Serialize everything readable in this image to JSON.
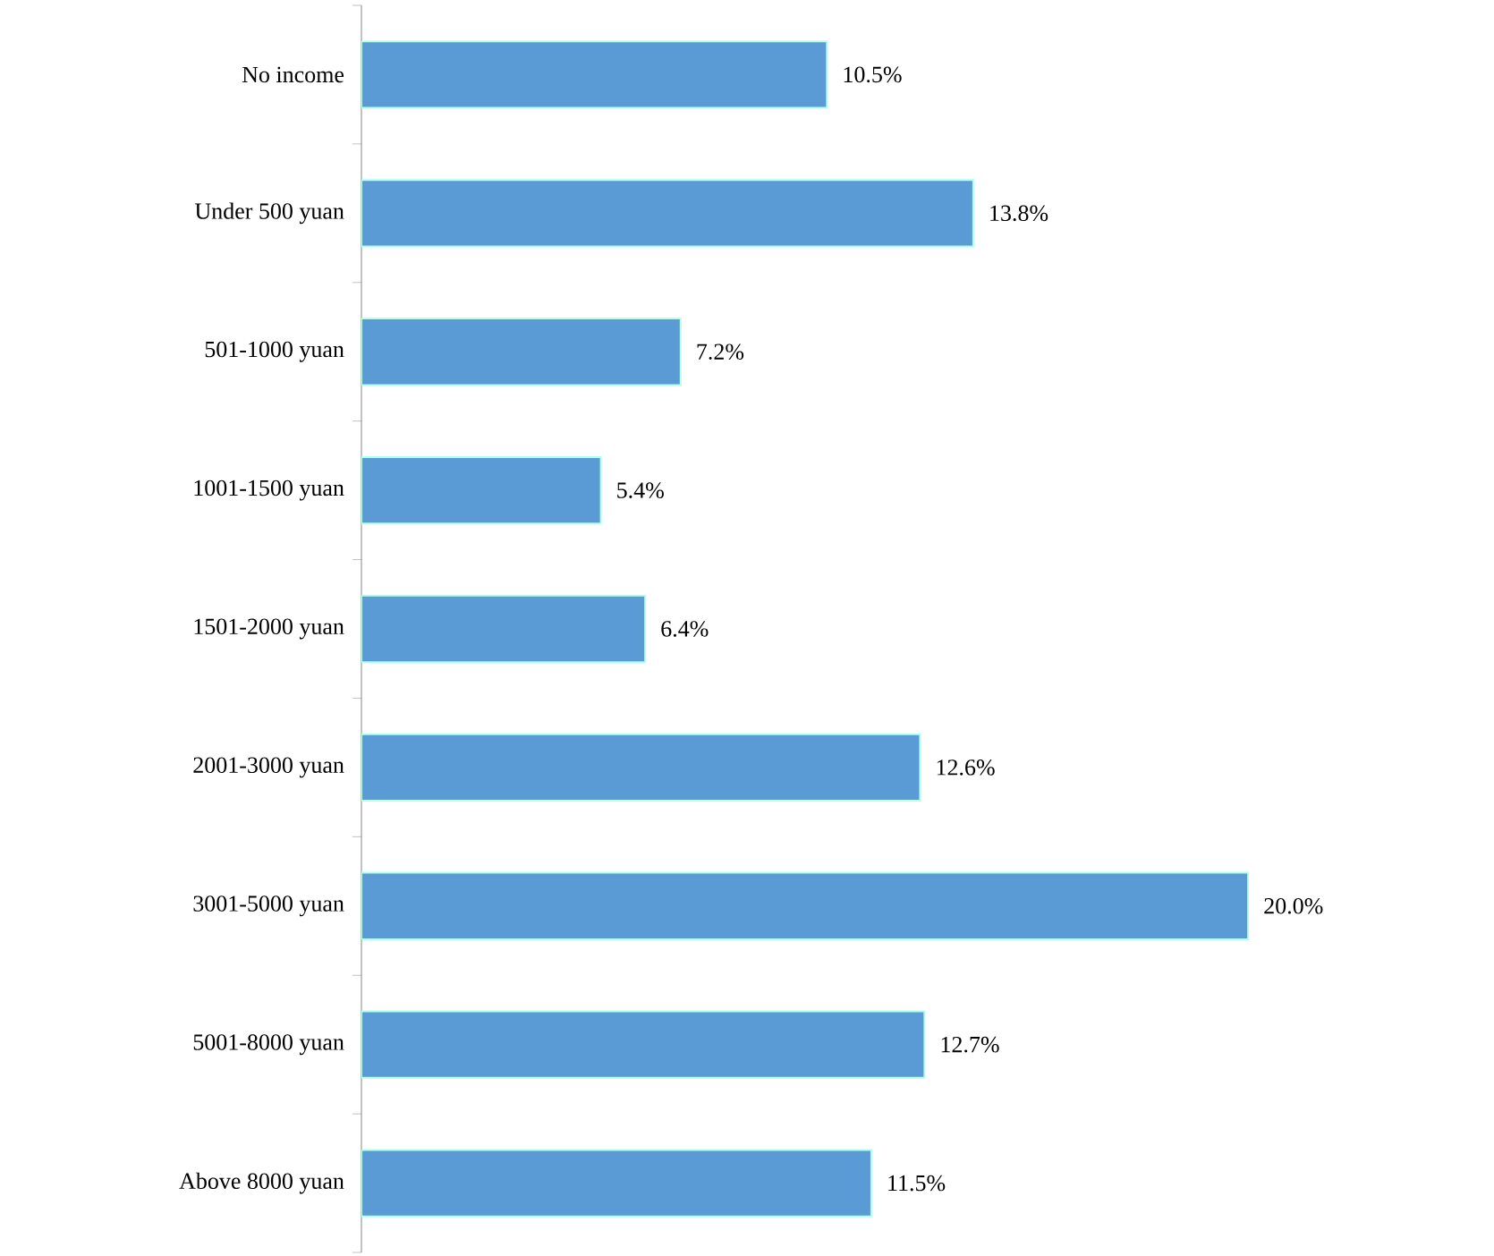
{
  "chart_data": {
    "type": "bar",
    "orientation": "horizontal",
    "categories": [
      "No income",
      "Under 500 yuan",
      "501-1000 yuan",
      "1001-1500 yuan",
      "1501-2000 yuan",
      "2001-3000 yuan",
      "3001-5000 yuan",
      "5001-8000 yuan",
      "Above 8000 yuan"
    ],
    "values": [
      10.5,
      13.8,
      7.2,
      5.4,
      6.4,
      12.6,
      20.0,
      12.7,
      11.5
    ],
    "value_labels": [
      "10.5%",
      "13.8%",
      "7.2%",
      "5.4%",
      "6.4%",
      "12.6%",
      "20.0%",
      "12.7%",
      "11.5%"
    ],
    "color": "#5b9bd5"
  }
}
